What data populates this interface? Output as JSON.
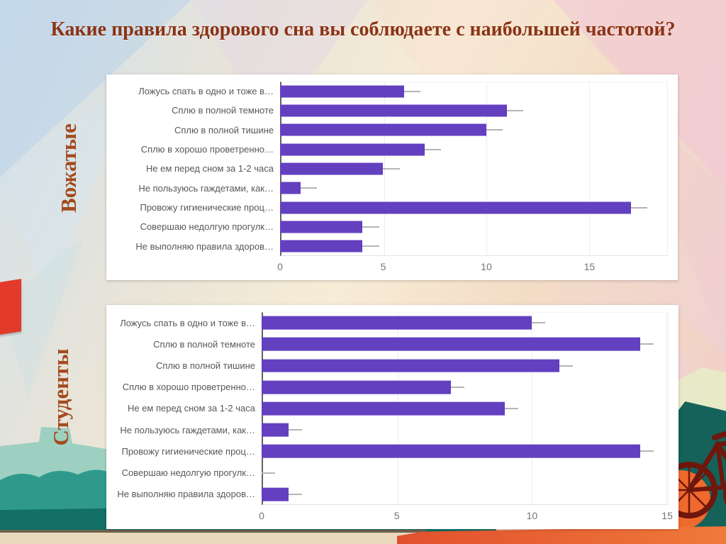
{
  "slide": {
    "title": "Какие правила здорового сна вы соблюдаете с наибольшей частотой?"
  },
  "groups": {
    "top": "Вожатые",
    "bottom": "Студенты"
  },
  "palette": {
    "bar": "#6340c0",
    "title_text": "#8b3315",
    "group_text": "#a34b1d",
    "teal_light": "#96cdbf",
    "teal_mid": "#2f9a8b",
    "teal_dark": "#127066",
    "orange": "#ef6a2d",
    "maroon": "#6f170c"
  },
  "chart_data": [
    {
      "type": "bar",
      "orientation": "horizontal",
      "group": "Вожатые",
      "title": "",
      "xlabel": "",
      "ylabel": "",
      "legend": "none",
      "grid": true,
      "categories": [
        "Ложусь спать в одно и тоже в…",
        "Сплю в полной темноте",
        "Сплю в полной тишине",
        "Сплю в хорошо проветренно…",
        "Не ем перед сном за 1-2 часа",
        "Не пользуюсь гаждетами, как…",
        "Провожу гигиенические проц…",
        "Совершаю недолгую прогулк…",
        "Не выполняю правила здоров…"
      ],
      "values": [
        6,
        11,
        10,
        7,
        5,
        1,
        17,
        4,
        4
      ],
      "xticks": [
        0,
        5,
        10,
        15
      ],
      "xlim": [
        0,
        18.8
      ],
      "whisker_units": 0.8
    },
    {
      "type": "bar",
      "orientation": "horizontal",
      "group": "Студенты",
      "title": "",
      "xlabel": "",
      "ylabel": "",
      "legend": "none",
      "grid": true,
      "categories": [
        "Ложусь спать в одно и тоже в…",
        "Сплю в полной темноте",
        "Сплю в полной тишине",
        "Сплю в хорошо проветренно…",
        "Не ем перед сном за 1-2 часа",
        "Не пользуюсь гаждетами, как…",
        "Провожу гигиенические проц…",
        "Совершаю недолгую прогулк…",
        "Не выполняю правила здоров…"
      ],
      "values": [
        10,
        14,
        11,
        7,
        9,
        1,
        14,
        0,
        1
      ],
      "xticks": [
        0,
        5,
        10,
        15
      ],
      "xlim": [
        0,
        15.05
      ],
      "whisker_units": 0.5
    }
  ]
}
